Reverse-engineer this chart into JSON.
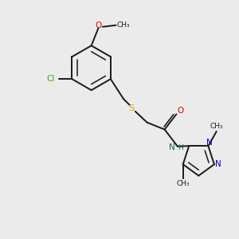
{
  "bg_color": "#ebebeb",
  "bond_color": "#1a1a1a",
  "cl_color": "#44aa00",
  "o_color": "#dd0000",
  "s_color": "#ccaa00",
  "n_color": "#0000cc",
  "nh_color": "#006666",
  "figsize": [
    3.0,
    3.0
  ],
  "dpi": 100,
  "xlim": [
    0,
    10
  ],
  "ylim": [
    0,
    10
  ]
}
